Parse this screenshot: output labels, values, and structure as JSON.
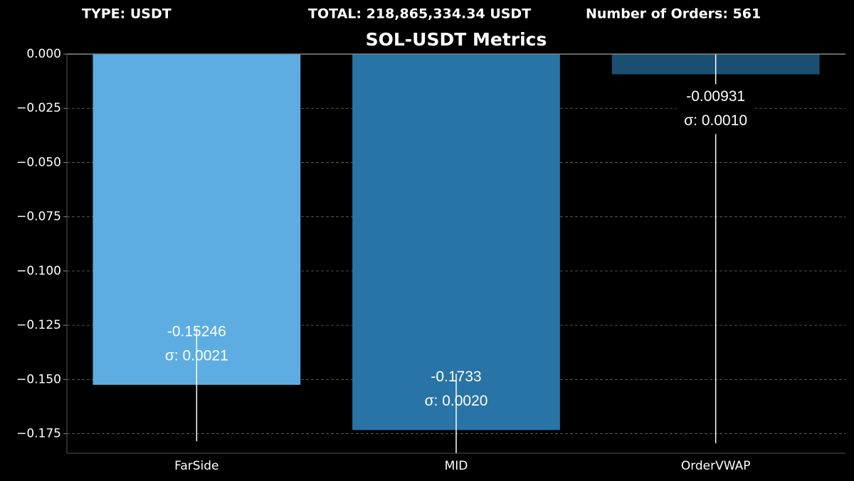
{
  "header": {
    "type": "TYPE: USDT",
    "total": "TOTAL: 218,865,334.34 USDT",
    "orders": "Number of Orders: 561"
  },
  "chart_data": {
    "type": "bar",
    "title": "SOL-USDT Metrics",
    "categories": [
      "FarSide",
      "MID",
      "OrderVWAP"
    ],
    "values": [
      -0.15246,
      -0.1733,
      -0.00931
    ],
    "errors": [
      0.026,
      0.026,
      0.17
    ],
    "sigma_labels": [
      "σ: 0.0021",
      "σ: 0.0020",
      "σ: 0.0010"
    ],
    "colors": [
      "#5dade2",
      "#2874a6",
      "#1b4f72"
    ],
    "ylim": [
      -0.184,
      0
    ],
    "yticks": [
      {
        "value": 0,
        "label": "0.000"
      },
      {
        "value": -0.025,
        "label": "−0.025"
      },
      {
        "value": -0.05,
        "label": "−0.050"
      },
      {
        "value": -0.075,
        "label": "−0.075"
      },
      {
        "value": -0.1,
        "label": "−0.100"
      },
      {
        "value": -0.125,
        "label": "−0.125"
      },
      {
        "value": -0.15,
        "label": "−0.150"
      },
      {
        "value": -0.175,
        "label": "−0.175"
      }
    ],
    "grid": true
  }
}
